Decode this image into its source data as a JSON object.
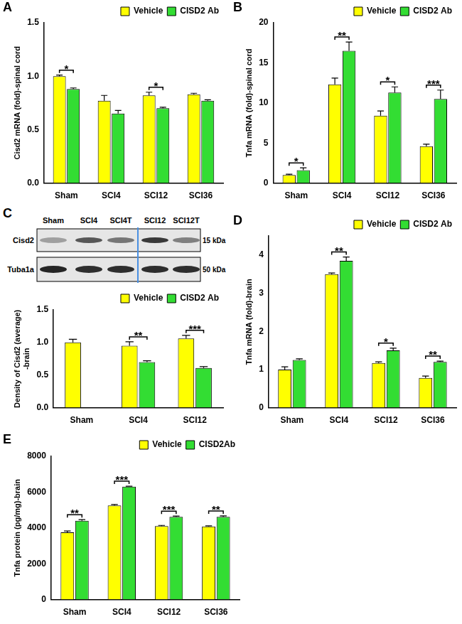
{
  "chart_data": [
    {
      "panel": "A",
      "type": "bar",
      "y_label": "Cisd2 mRNA (fold)-spinal cord",
      "categories": [
        "Sham",
        "SCI4",
        "SCI12",
        "SCI36"
      ],
      "series": [
        {
          "name": "Vehicle",
          "color": "#ffff00",
          "values": [
            1.0,
            0.77,
            0.82,
            0.83
          ],
          "errors": [
            0.01,
            0.05,
            0.03,
            0.01
          ]
        },
        {
          "name": "CISD2 Ab",
          "color": "#33dd33",
          "values": [
            0.88,
            0.65,
            0.7,
            0.77
          ],
          "errors": [
            0.01,
            0.03,
            0.01,
            0.01
          ]
        }
      ],
      "annotations": [
        {
          "category": "Sham",
          "text": "*"
        },
        {
          "category": "SCI12",
          "text": "*"
        }
      ],
      "ylim": [
        0,
        1.5
      ],
      "yticks": [
        {
          "value": 0,
          "label": "0.0"
        },
        {
          "value": 0.5,
          "label": "0.5"
        },
        {
          "value": 1,
          "label": "1.0"
        },
        {
          "value": 1.5,
          "label": "1.5"
        }
      ],
      "grid": false,
      "legend": "top right"
    },
    {
      "panel": "B",
      "type": "bar",
      "y_label": "Tnfa mRNA (fold)-spinal cord",
      "categories": [
        "Sham",
        "SCI4",
        "SCI12",
        "SCI36"
      ],
      "series": [
        {
          "name": "Vehicle",
          "color": "#ffff00",
          "values": [
            1.0,
            12.3,
            8.4,
            4.6
          ],
          "errors": [
            0.1,
            0.8,
            0.6,
            0.25
          ]
        },
        {
          "name": "CISD2 Ab",
          "color": "#33dd33",
          "values": [
            1.6,
            16.5,
            11.3,
            10.5
          ],
          "errors": [
            0.3,
            1.1,
            0.7,
            1.1
          ]
        }
      ],
      "annotations": [
        {
          "category": "Sham",
          "text": "*"
        },
        {
          "category": "SCI4",
          "text": "**"
        },
        {
          "category": "SCI12",
          "text": "*"
        },
        {
          "category": "SCI36",
          "text": "***"
        }
      ],
      "ylim": [
        0,
        20
      ],
      "yticks": [
        0,
        5,
        10,
        15,
        20
      ],
      "grid": false,
      "legend": "top right"
    },
    {
      "panel": "C",
      "type": "bar",
      "y_label": "Density of Cisd2 (average) -brain",
      "categories": [
        "Sham",
        "SCI4",
        "SCI12"
      ],
      "series": [
        {
          "name": "Vehicle",
          "color": "#ffff00",
          "values": [
            1.0,
            0.95,
            1.06
          ],
          "errors": [
            0.05,
            0.06,
            0.05
          ]
        },
        {
          "name": "CISD2 Ab",
          "color": "#33dd33",
          "values": [
            null,
            0.7,
            0.61
          ],
          "errors": [
            null,
            0.02,
            0.02
          ]
        }
      ],
      "annotations": [
        {
          "category": "SCI4",
          "text": "**"
        },
        {
          "category": "SCI12",
          "text": "***"
        }
      ],
      "ylim": [
        0,
        1.5
      ],
      "yticks": [
        {
          "value": 0,
          "label": "0.0"
        },
        {
          "value": 0.5,
          "label": "0.5"
        },
        {
          "value": 1,
          "label": "1.0"
        },
        {
          "value": 1.5,
          "label": "1.5"
        }
      ],
      "grid": false,
      "legend": "top right"
    },
    {
      "panel": "D",
      "type": "bar",
      "y_label": "Tnfa mRNA (fold)-brain",
      "categories": [
        "Sham",
        "SCI4",
        "SCI12",
        "SCI36"
      ],
      "series": [
        {
          "name": "Vehicle",
          "color": "#ffff00",
          "values": [
            1.0,
            3.5,
            1.17,
            0.78
          ],
          "errors": [
            0.07,
            0.03,
            0.03,
            0.05
          ]
        },
        {
          "name": "CISD2 Ab",
          "color": "#33dd33",
          "values": [
            1.25,
            3.85,
            1.5,
            1.2
          ],
          "errors": [
            0.03,
            0.1,
            0.06,
            0.02
          ]
        }
      ],
      "annotations": [
        {
          "category": "SCI4",
          "text": "**"
        },
        {
          "category": "SCI12",
          "text": "*"
        },
        {
          "category": "SCI36",
          "text": "**"
        }
      ],
      "ylim": [
        0,
        4.5
      ],
      "yticks": [
        0,
        1,
        2,
        3,
        4
      ],
      "grid": false,
      "legend": "top right"
    },
    {
      "panel": "E",
      "type": "bar",
      "y_label": "Tnfa protein (pg/mg)-brain",
      "categories": [
        "Sham",
        "SCI4",
        "SCI12",
        "SCI36"
      ],
      "series": [
        {
          "name": "Vehicle",
          "color": "#ffff00",
          "values": [
            3750,
            5250,
            4100,
            4080
          ],
          "errors": [
            80,
            60,
            40,
            40
          ]
        },
        {
          "name": "CISD2Ab",
          "color": "#33dd33",
          "values": [
            4400,
            6300,
            4620,
            4620
          ],
          "errors": [
            60,
            30,
            40,
            50
          ]
        }
      ],
      "annotations": [
        {
          "category": "Sham",
          "text": "**"
        },
        {
          "category": "SCI4",
          "text": "***"
        },
        {
          "category": "SCI12",
          "text": "***"
        },
        {
          "category": "SCI36",
          "text": "**"
        }
      ],
      "ylim": [
        0,
        8000
      ],
      "yticks": [
        0,
        2000,
        4000,
        6000,
        8000
      ],
      "grid": false,
      "legend": "top right"
    }
  ],
  "blot": {
    "lanes": [
      "Sham",
      "SCI4",
      "SCI4T",
      "SCI12",
      "SCI12T"
    ],
    "bands": [
      {
        "name": "Cisd2",
        "size": "15 kDa"
      },
      {
        "name": "Tuba1a",
        "size": "50 kDa"
      }
    ]
  }
}
